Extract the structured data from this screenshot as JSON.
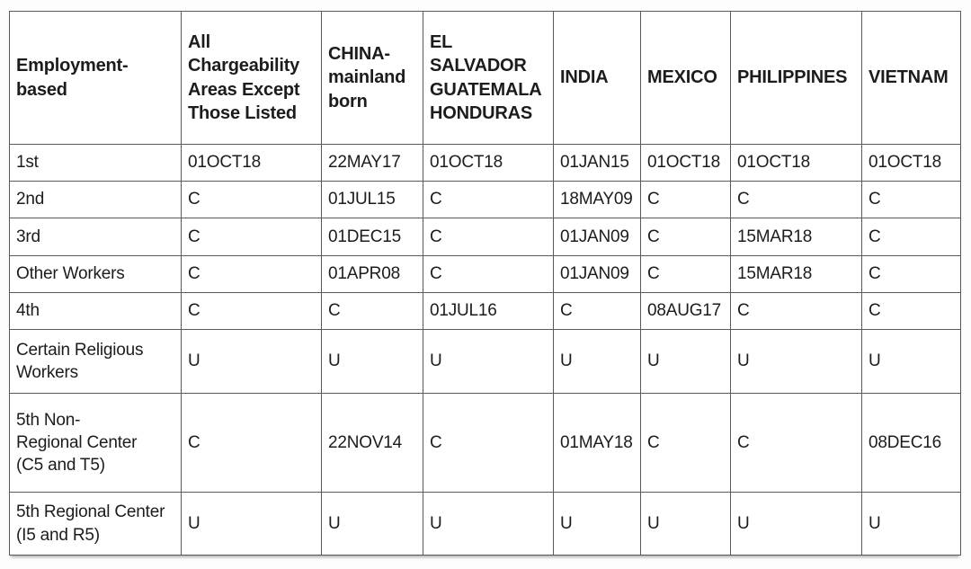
{
  "table": {
    "columns": [
      {
        "label": "Employment-\nbased"
      },
      {
        "label": "All\nChargeability\nAreas Except\nThose Listed"
      },
      {
        "label": "CHINA-\nmainland\nborn"
      },
      {
        "label": "EL\nSALVADOR\nGUATEMALA\nHONDURAS"
      },
      {
        "label": "INDIA"
      },
      {
        "label": "MEXICO"
      },
      {
        "label": "PHILIPPINES"
      },
      {
        "label": "VIETNAM"
      }
    ],
    "rows": [
      {
        "label": "1st",
        "values": [
          "01OCT18",
          "22MAY17",
          "01OCT18",
          "01JAN15",
          "01OCT18",
          "01OCT18",
          "01OCT18"
        ]
      },
      {
        "label": "2nd",
        "values": [
          "C",
          "01JUL15",
          "C",
          "18MAY09",
          "C",
          "C",
          "C"
        ]
      },
      {
        "label": "3rd",
        "values": [
          "C",
          "01DEC15",
          "C",
          "01JAN09",
          "C",
          "15MAR18",
          "C"
        ]
      },
      {
        "label": "Other Workers",
        "values": [
          "C",
          "01APR08",
          "C",
          "01JAN09",
          "C",
          "15MAR18",
          "C"
        ]
      },
      {
        "label": "4th",
        "values": [
          "C",
          "C",
          "01JUL16",
          "C",
          "08AUG17",
          "C",
          "C"
        ]
      },
      {
        "label": "Certain Religious\nWorkers",
        "values": [
          "U",
          "U",
          "U",
          "U",
          "U",
          "U",
          "U"
        ]
      },
      {
        "label": "5th Non-\nRegional Center\n(C5 and T5)",
        "values": [
          "C",
          "22NOV14",
          "C",
          "01MAY18",
          "C",
          "C",
          "08DEC16"
        ]
      },
      {
        "label": "5th Regional Center\n(I5 and R5)",
        "values": [
          "U",
          "U",
          "U",
          "U",
          "U",
          "U",
          "U"
        ]
      }
    ],
    "colors": {
      "border": "#595959",
      "text": "#1c1c1c",
      "cell_background": "#ffffff"
    }
  }
}
